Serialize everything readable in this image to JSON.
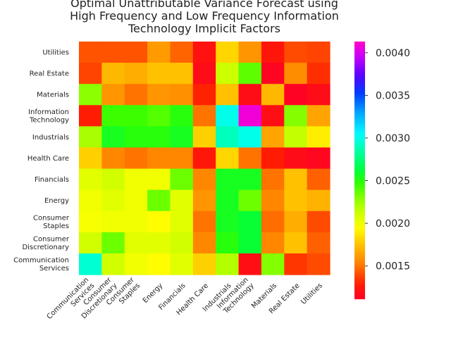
{
  "chart_data": {
    "type": "heatmap",
    "title_lines": [
      "Optimal Unattributable Variance Forecast using",
      "High Frequency and Low Frequency Information",
      "Technology Implicit Factors"
    ],
    "xlabel": "",
    "ylabel": "",
    "x_categories": [
      [
        "Communication",
        "Services"
      ],
      [
        "Consumer",
        "Discretionary"
      ],
      [
        "Consumer",
        "Staples"
      ],
      [
        "Energy"
      ],
      [
        "Financials"
      ],
      [
        "Health Care"
      ],
      [
        "Industrials"
      ],
      [
        "Information",
        "Technology"
      ],
      [
        "Materials"
      ],
      [
        "Real Estate"
      ],
      [
        "Utilities"
      ]
    ],
    "y_categories": [
      [
        "Utilities"
      ],
      [
        "Real Estate"
      ],
      [
        "Materials"
      ],
      [
        "Information",
        "Technology"
      ],
      [
        "Industrials"
      ],
      [
        "Health Care"
      ],
      [
        "Financials"
      ],
      [
        "Energy"
      ],
      [
        "Consumer",
        "Staples"
      ],
      [
        "Consumer",
        "Discretionary"
      ],
      [
        "Communication",
        "Services"
      ]
    ],
    "values": [
      [
        0.00142,
        0.00142,
        0.00142,
        0.00162,
        0.00146,
        0.00122,
        0.00182,
        0.0016,
        0.00124,
        0.0014,
        0.00138
      ],
      [
        0.00138,
        0.00172,
        0.00168,
        0.00175,
        0.00175,
        0.00118,
        0.00212,
        0.00238,
        0.00114,
        0.00157,
        0.00133
      ],
      [
        0.00228,
        0.0016,
        0.0015,
        0.0016,
        0.00158,
        0.0013,
        0.00175,
        0.00119,
        0.00172,
        0.00113,
        0.00118
      ],
      [
        0.00128,
        0.00245,
        0.00245,
        0.0024,
        0.0025,
        0.0015,
        0.003,
        0.00408,
        0.0012,
        0.0023,
        0.00165
      ],
      [
        0.00222,
        0.00255,
        0.0025,
        0.0025,
        0.00255,
        0.0018,
        0.0029,
        0.003,
        0.00165,
        0.00215,
        0.0019
      ],
      [
        0.0018,
        0.00155,
        0.0015,
        0.00155,
        0.00155,
        0.00125,
        0.00182,
        0.0015,
        0.00128,
        0.00118,
        0.00115
      ],
      [
        0.00205,
        0.0021,
        0.002,
        0.002,
        0.00235,
        0.00155,
        0.00255,
        0.00255,
        0.0015,
        0.00175,
        0.00145
      ],
      [
        0.002,
        0.00205,
        0.002,
        0.00235,
        0.00205,
        0.0016,
        0.00255,
        0.00235,
        0.00155,
        0.00175,
        0.0017
      ],
      [
        0.00198,
        0.002,
        0.002,
        0.00195,
        0.00205,
        0.0015,
        0.00255,
        0.0026,
        0.00148,
        0.00168,
        0.0014
      ],
      [
        0.0021,
        0.00235,
        0.00205,
        0.00205,
        0.0021,
        0.00155,
        0.0025,
        0.0026,
        0.00155,
        0.00175,
        0.00145
      ],
      [
        0.00295,
        0.0021,
        0.002,
        0.00195,
        0.00205,
        0.0018,
        0.0022,
        0.0012,
        0.0023,
        0.00135,
        0.0014
      ]
    ],
    "colorbar": {
      "range": [
        0.00111,
        0.00413
      ],
      "ticks": [
        "0.0015",
        "0.0020",
        "0.0025",
        "0.0030",
        "0.0035",
        "0.0040"
      ],
      "tick_values": [
        0.0015,
        0.002,
        0.0025,
        0.003,
        0.0035,
        0.004
      ]
    },
    "colormap": "gist_rainbow_r",
    "grid": false
  }
}
